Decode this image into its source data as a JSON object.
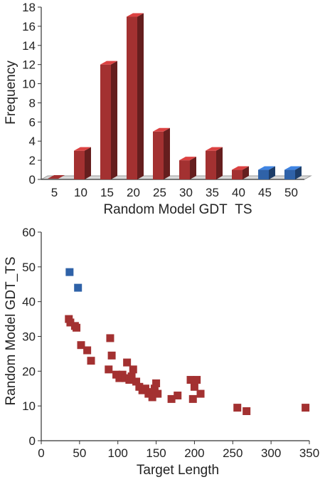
{
  "chart_data": [
    {
      "type": "bar",
      "xlabel": "Random Model GDT_TS",
      "ylabel": "Frequency",
      "ylim": [
        0,
        18
      ],
      "yticks": [
        0,
        2,
        4,
        6,
        8,
        10,
        12,
        14,
        16,
        18
      ],
      "categories": [
        "5",
        "10",
        "15",
        "20",
        "25",
        "30",
        "35",
        "40",
        "45",
        "50"
      ],
      "values": [
        0,
        3,
        12,
        17,
        5,
        2,
        3,
        1,
        1,
        1
      ],
      "bar_colors": [
        "#a33131",
        "#a33131",
        "#a33131",
        "#a33131",
        "#a33131",
        "#a33131",
        "#a33131",
        "#a33131",
        "#2f62a8",
        "#2f62a8"
      ],
      "grid": false
    },
    {
      "type": "scatter",
      "xlabel": "Target Length",
      "ylabel": "Random Model GDT_TS",
      "xlim": [
        0,
        350
      ],
      "ylim": [
        0,
        60
      ],
      "xticks": [
        0,
        50,
        100,
        150,
        200,
        250,
        300,
        350
      ],
      "yticks": [
        0,
        10,
        20,
        30,
        40,
        50,
        60
      ],
      "grid": false,
      "series": [
        {
          "color": "#2f62a8",
          "points": [
            [
              37,
              48.5
            ],
            [
              48,
              44
            ]
          ]
        },
        {
          "color": "#a33131",
          "points": [
            [
              36,
              35
            ],
            [
              38,
              34
            ],
            [
              44,
              33
            ],
            [
              46,
              32.5
            ],
            [
              52,
              27.5
            ],
            [
              60,
              26
            ],
            [
              65,
              23
            ],
            [
              88,
              20.5
            ],
            [
              90,
              29.5
            ],
            [
              92,
              24.5
            ],
            [
              98,
              19
            ],
            [
              102,
              18
            ],
            [
              106,
              19
            ],
            [
              110,
              18
            ],
            [
              112,
              22.5
            ],
            [
              115,
              17.5
            ],
            [
              118,
              18.5
            ],
            [
              120,
              20.5
            ],
            [
              124,
              17
            ],
            [
              128,
              15.5
            ],
            [
              132,
              14.5
            ],
            [
              136,
              15
            ],
            [
              140,
              13.5
            ],
            [
              142,
              14
            ],
            [
              145,
              12.5
            ],
            [
              148,
              15
            ],
            [
              150,
              16.5
            ],
            [
              152,
              13.5
            ],
            [
              170,
              12
            ],
            [
              178,
              13
            ],
            [
              195,
              17.5
            ],
            [
              198,
              12
            ],
            [
              200,
              15.5
            ],
            [
              203,
              17.5
            ],
            [
              208,
              13.5
            ],
            [
              256,
              9.5
            ],
            [
              268,
              8.5
            ],
            [
              345,
              9.5
            ]
          ]
        }
      ]
    }
  ]
}
